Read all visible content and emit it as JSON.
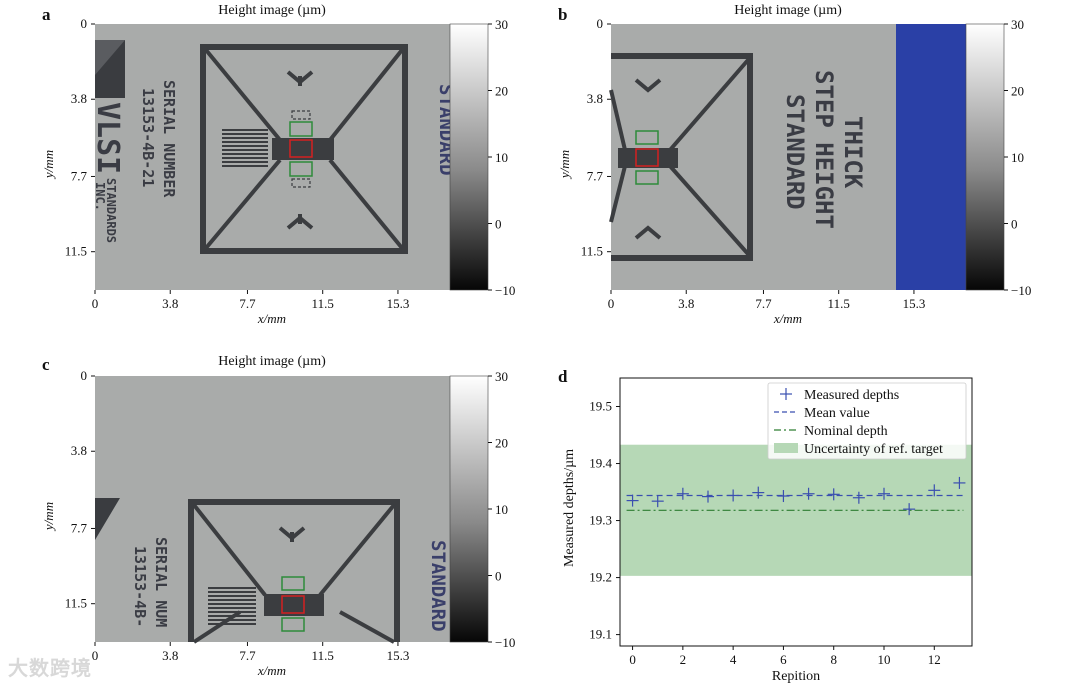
{
  "figure": {
    "panels": {
      "a": {
        "letter": "a",
        "title": "Height image (µm)",
        "xlabel": "x/mm",
        "ylabel": "y/mm",
        "xticks": [
          "0",
          "3.8",
          "7.7",
          "11.5",
          "15.3"
        ],
        "yticks": [
          "0",
          "3.8",
          "7.7",
          "11.5"
        ],
        "colorbar_ticks": [
          "30",
          "20",
          "10",
          "0",
          "−10"
        ],
        "engraving": {
          "serial_line1": "SERIAL NUMBER",
          "serial_line2": "13153-4B-21",
          "logo": "VLSI",
          "standards": "STANDARDS",
          "inc": "INC.",
          "standard_right": "STANDARD"
        }
      },
      "b": {
        "letter": "b",
        "title": "Height image (µm)",
        "xlabel": "x/mm",
        "ylabel": "y/mm",
        "xticks": [
          "0",
          "3.8",
          "7.7",
          "11.5",
          "15.3"
        ],
        "yticks": [
          "0",
          "3.8",
          "7.7",
          "11.5"
        ],
        "colorbar_ticks": [
          "30",
          "20",
          "10",
          "0",
          "−10"
        ],
        "engraving": {
          "line1": "THICK",
          "line2": "STEP HEIGHT",
          "line3": "STANDARD"
        }
      },
      "c": {
        "letter": "c",
        "title": "Height image (µm)",
        "xlabel": "x/mm",
        "ylabel": "y/mm",
        "xticks": [
          "0",
          "3.8",
          "7.7",
          "11.5",
          "15.3"
        ],
        "yticks": [
          "0",
          "3.8",
          "7.7",
          "11.5"
        ],
        "colorbar_ticks": [
          "30",
          "20",
          "10",
          "0",
          "−10"
        ],
        "engraving": {
          "serial_line1": "SERIAL NUM",
          "serial_line2": "13153-4B-",
          "standard_right": "STANDARD"
        }
      },
      "d": {
        "letter": "d",
        "xlabel": "Repition",
        "ylabel": "Measured depths/µm",
        "xticks": [
          "0",
          "2",
          "4",
          "6",
          "8",
          "10",
          "12"
        ],
        "yticks": [
          "19.1",
          "19.2",
          "19.3",
          "19.4",
          "19.5"
        ]
      }
    },
    "watermark": "大数跨境"
  },
  "chart_data": {
    "type": "scatter",
    "xlabel": "Repition",
    "ylabel": "Measured depths/µm",
    "xlim": [
      -0.5,
      13.5
    ],
    "ylim": [
      19.08,
      19.55
    ],
    "legend_position": "top-right",
    "series": [
      {
        "name": "Measured depths",
        "style": "plus-marker",
        "color": "#3a4fb0",
        "x": [
          0,
          1,
          2,
          3,
          4,
          5,
          6,
          7,
          8,
          9,
          10,
          11,
          12,
          13
        ],
        "values": [
          19.335,
          19.334,
          19.347,
          19.342,
          19.344,
          19.349,
          19.343,
          19.347,
          19.346,
          19.34,
          19.347,
          19.32,
          19.353,
          19.366
        ]
      },
      {
        "name": "Mean value",
        "style": "dashed-line",
        "color": "#3a4fb0",
        "value": 19.344
      },
      {
        "name": "Nominal depth",
        "style": "dash-dot-line",
        "color": "#2e7d32",
        "value": 19.318
      },
      {
        "name": "Uncertainty of ref. target",
        "style": "band",
        "color": "#b6d8b6",
        "range": [
          19.203,
          19.433
        ]
      }
    ]
  }
}
